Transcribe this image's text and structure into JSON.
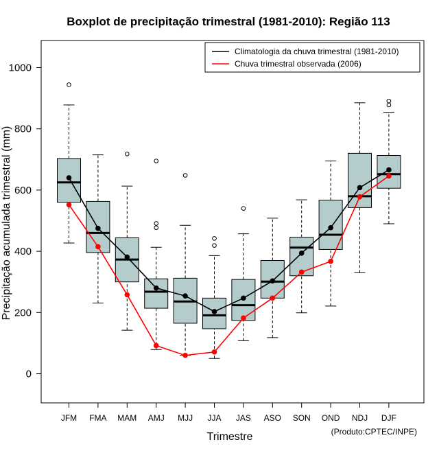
{
  "chart_data": {
    "type": "boxplot",
    "title": "Boxplot de precipitação trimestral (1981-2010): Região 113",
    "xlabel": "Trimestre",
    "ylabel": "Precipitação acumulada trimestral (mm)",
    "ylim": [
      -95,
      1085
    ],
    "yticks": [
      0,
      200,
      400,
      600,
      800,
      1000
    ],
    "categories": [
      "JFM",
      "FMA",
      "MAM",
      "AMJ",
      "MJJ",
      "JJA",
      "JAS",
      "ASO",
      "SON",
      "OND",
      "NDJ",
      "DJF"
    ],
    "boxes": [
      {
        "min": 427,
        "q1": 560,
        "median": 625,
        "q3": 703,
        "max": 878,
        "outliers": [
          944
        ]
      },
      {
        "min": 231,
        "q1": 396,
        "median": 460,
        "q3": 563,
        "max": 715,
        "outliers": []
      },
      {
        "min": 142,
        "q1": 300,
        "median": 373,
        "q3": 444,
        "max": 613,
        "outliers": [
          718
        ]
      },
      {
        "min": 79,
        "q1": 214,
        "median": 268,
        "q3": 310,
        "max": 413,
        "outliers": [
          477,
          491,
          695
        ]
      },
      {
        "min": 60,
        "q1": 165,
        "median": 236,
        "q3": 312,
        "max": 485,
        "outliers": [
          648
        ]
      },
      {
        "min": 50,
        "q1": 147,
        "median": 191,
        "q3": 247,
        "max": 386,
        "outliers": [
          419,
          442
        ]
      },
      {
        "min": 108,
        "q1": 174,
        "median": 224,
        "q3": 308,
        "max": 457,
        "outliers": [
          540
        ]
      },
      {
        "min": 118,
        "q1": 247,
        "median": 301,
        "q3": 370,
        "max": 508,
        "outliers": []
      },
      {
        "min": 199,
        "q1": 320,
        "median": 412,
        "q3": 446,
        "max": 568,
        "outliers": []
      },
      {
        "min": 221,
        "q1": 406,
        "median": 454,
        "q3": 567,
        "max": 695,
        "outliers": []
      },
      {
        "min": 330,
        "q1": 543,
        "median": 580,
        "q3": 720,
        "max": 885,
        "outliers": []
      },
      {
        "min": 490,
        "q1": 606,
        "median": 652,
        "q3": 713,
        "max": 854,
        "outliers": [
          878,
          891
        ]
      }
    ],
    "series": [
      {
        "name": "Climatologia da chuva trimestral (1981-2010)",
        "color": "#000000",
        "values": [
          640,
          475,
          381,
          280,
          254,
          203,
          247,
          303,
          394,
          477,
          608,
          666
        ]
      },
      {
        "name": "Chuva trimestral observada (2006)",
        "color": "#ff0000",
        "values": [
          552,
          415,
          258,
          92,
          60,
          71,
          182,
          247,
          332,
          367,
          578,
          646
        ]
      }
    ],
    "box_fill": "#b4cccc",
    "legend_position": "top-right",
    "credit": "(Produto:CPTEC/INPE)"
  }
}
